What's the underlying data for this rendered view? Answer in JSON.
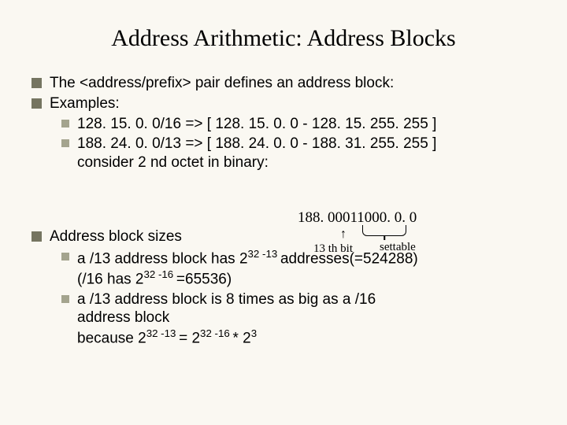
{
  "title": "Address Arithmetic: Address Blocks",
  "bullets": {
    "b1": "The <address/prefix> pair defines an address block:",
    "b2": "Examples:",
    "b2a": "128. 15. 0. 0/16 => [ 128. 15. 0. 0 - 128. 15. 255. 255 ]",
    "b2b_l1": "188. 24. 0. 0/13 => [ 188. 24. 0. 0 - 188. 31. 255. 255 ]",
    "b2b_l2": "consider 2 nd octet in binary:",
    "b3": "Address block sizes",
    "b3a_pre": "a /13 address block has 2",
    "b3a_exp1": "32 -13 ",
    "b3a_mid": "addresses(=524288)",
    "b3a_l2_pre": "(/16 has 2",
    "b3a_l2_exp": "32 -16 ",
    "b3a_l2_post": "=65536)",
    "b3b_l1": "a /13 address block is 8 times as big as a /16",
    "b3b_l2": "address block",
    "b3b_l3_pre": "because 2",
    "b3b_l3_e1": "32 -13 ",
    "b3b_l3_mid": "= 2",
    "b3b_l3_e2": "32 -16 ",
    "b3b_l3_mid2": "* 2",
    "b3b_l3_e3": "3"
  },
  "annot": {
    "binary": "188. 00011000. 0. 0",
    "bit": "13 th bit",
    "settable": "settable"
  },
  "colors": {
    "bg": "#faf8f2",
    "bullet_l1": "#757561",
    "bullet_l2": "#a4a48e",
    "text": "#000000"
  }
}
